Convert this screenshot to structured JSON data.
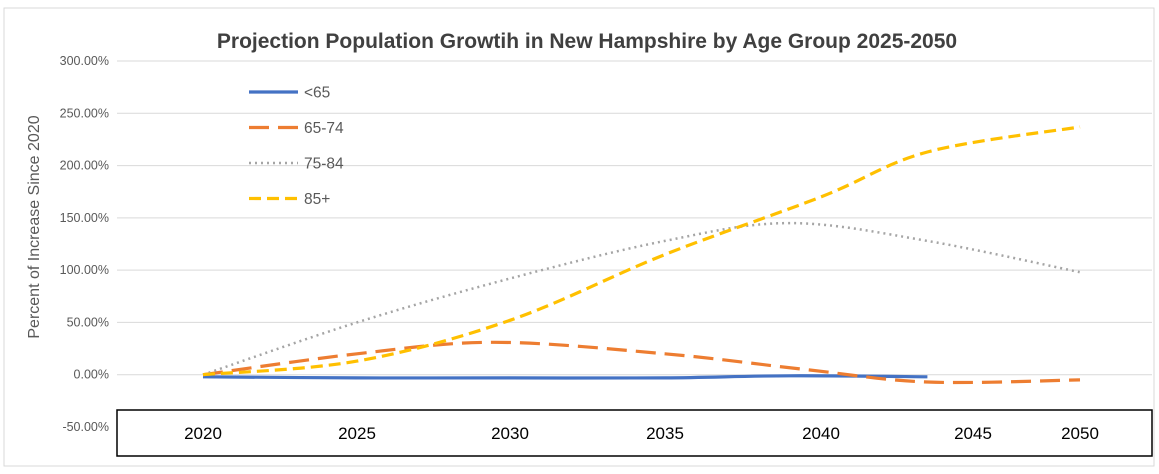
{
  "chart_data": {
    "type": "line",
    "title": "Projection Population Growtih in New Hampshire by Age Group 2025-2050",
    "ylabel": "Percent of Increase Since 2020",
    "xlabel": "",
    "x_ticks": [
      "2020",
      "2025",
      "2030",
      "2035",
      "2040",
      "2045",
      "2050"
    ],
    "y_ticks": [
      "300.00%",
      "250.00%",
      "200.00%",
      "150.00%",
      "100.00%",
      "50.00%",
      "0.00%",
      "-50.00%"
    ],
    "ylim": [
      -50,
      300
    ],
    "grid": true,
    "legend_position": "top-left",
    "series": [
      {
        "name": "<65",
        "style": "solid",
        "color": "#4472C4",
        "points": [
          [
            2020,
            -2
          ],
          [
            2025,
            -3
          ],
          [
            2030,
            -3
          ],
          [
            2035,
            -3
          ],
          [
            2039,
            -1
          ],
          [
            2043.5,
            -2
          ]
        ]
      },
      {
        "name": "65-74",
        "style": "dashed",
        "color": "#ED7D31",
        "points": [
          [
            2020,
            0
          ],
          [
            2025,
            20
          ],
          [
            2029.5,
            31
          ],
          [
            2035,
            20
          ],
          [
            2039.5,
            5
          ],
          [
            2043.5,
            -7
          ],
          [
            2050,
            -5
          ]
        ]
      },
      {
        "name": "75-84",
        "style": "dotted",
        "color": "#A5A5A5",
        "points": [
          [
            2020,
            0
          ],
          [
            2025,
            50
          ],
          [
            2030,
            92
          ],
          [
            2035,
            128
          ],
          [
            2039,
            145
          ],
          [
            2043.5,
            128
          ],
          [
            2050,
            98
          ]
        ]
      },
      {
        "name": "85+",
        "style": "dashed",
        "color": "#FFC000",
        "points": [
          [
            2020,
            0
          ],
          [
            2025,
            13
          ],
          [
            2030,
            52
          ],
          [
            2035,
            115
          ],
          [
            2040,
            170
          ],
          [
            2043.5,
            213
          ],
          [
            2050,
            237
          ]
        ]
      }
    ]
  }
}
